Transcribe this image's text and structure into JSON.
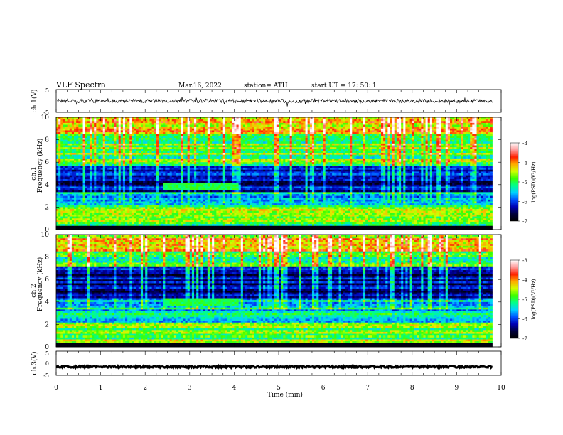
{
  "header": {
    "title": "VLF  Spectra",
    "date": "Mar.16, 2022",
    "station": "station= ATH",
    "start": "start  UT  =    17: 50: 1"
  },
  "colors": {
    "colormap": [
      "#000000",
      "#00003a",
      "#0000b4",
      "#0052ff",
      "#00d2ff",
      "#00ff8c",
      "#3cff00",
      "#d2ff00",
      "#ffaa00",
      "#ff2000",
      "#ff9a9a",
      "#ffffff"
    ]
  },
  "chart_data": [
    {
      "type": "line",
      "panel": "ch1",
      "ylabel": "ch.1(V)",
      "ylim": [
        -5,
        5
      ],
      "yticks": [
        "5",
        "-5"
      ],
      "xlim": [
        0,
        10
      ],
      "series": [
        {
          "level": 0,
          "amplitude": 0.8,
          "spike_amplitude": 2.0
        }
      ]
    },
    {
      "type": "heatmap",
      "panel": "spec1",
      "ylabel": [
        "ch.1",
        "Frequency  (kHz)"
      ],
      "ylim": [
        0,
        10
      ],
      "yticks": [
        "10",
        "8",
        "6",
        "4",
        "2",
        "0"
      ],
      "xlim": [
        0,
        10
      ],
      "data_end_minutes": 9.8,
      "quiet_band_khz": [
        3.3,
        5.6
      ],
      "bright_region": {
        "x": [
          2.4,
          4.1
        ],
        "y_khz": [
          3.5,
          4.2
        ]
      },
      "colorbar": {
        "label": "log(PSD)(V²/Hz)",
        "range": [
          -7,
          -3
        ],
        "ticks": [
          "-3",
          "-4",
          "-5",
          "-6",
          "-7"
        ]
      }
    },
    {
      "type": "heatmap",
      "panel": "spec2",
      "ylabel": [
        "ch.2",
        "Frequency  (kHz)"
      ],
      "ylim": [
        0,
        10
      ],
      "yticks": [
        "10",
        "8",
        "6",
        "4",
        "2",
        "0"
      ],
      "xlim": [
        0,
        10
      ],
      "data_end_minutes": 9.8,
      "quiet_band_khz": [
        4.3,
        7.2
      ],
      "bright_region": {
        "x": [
          2.4,
          4.1
        ],
        "y_khz": [
          3.6,
          4.3
        ]
      },
      "colorbar": {
        "label": "log(PSD)(V²/Hz)",
        "range": [
          -7,
          -3
        ],
        "ticks": [
          "-3",
          "-4",
          "-5",
          "-6",
          "-7"
        ]
      }
    },
    {
      "type": "line",
      "panel": "ch3",
      "ylabel": "ch.3(V)",
      "ylim": [
        -5,
        5
      ],
      "yticks": [
        "5",
        "0",
        "-5"
      ],
      "xlim": [
        0,
        10
      ],
      "series": [
        {
          "level": -1.5,
          "amplitude": 0.3,
          "spike_amplitude": 0
        }
      ]
    }
  ],
  "xaxis": {
    "label": "Time  (min)",
    "ticks": [
      0,
      1,
      2,
      3,
      4,
      5,
      6,
      7,
      8,
      9,
      10
    ]
  }
}
